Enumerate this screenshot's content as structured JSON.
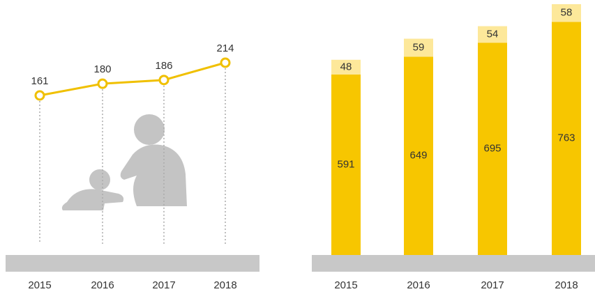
{
  "chart_data": [
    {
      "type": "line",
      "categories": [
        "2015",
        "2016",
        "2017",
        "2018"
      ],
      "values": [
        161,
        180,
        186,
        214
      ],
      "color": "#f0c000"
    },
    {
      "type": "bar",
      "stacked": true,
      "categories": [
        "2015",
        "2016",
        "2017",
        "2018"
      ],
      "series": [
        {
          "color": "#f7c600",
          "values": [
            591,
            649,
            695,
            763
          ]
        },
        {
          "color": "#fde89a",
          "values": [
            48,
            59,
            54,
            58
          ]
        }
      ]
    }
  ]
}
